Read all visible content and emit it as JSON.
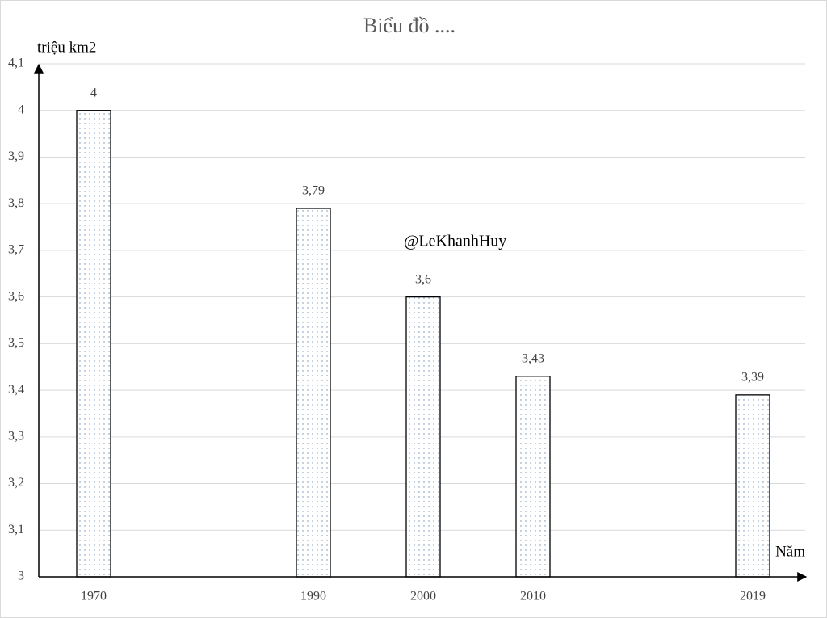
{
  "chart_data": {
    "type": "bar",
    "title": "Biểu đồ ....",
    "y_label": "triệu km2",
    "x_label": "Năm",
    "annotation": "@LeKhanhHuy",
    "categories": [
      "1970",
      null,
      "1990",
      "2000",
      "2010",
      null,
      "2019"
    ],
    "values": [
      4,
      null,
      3.79,
      3.6,
      3.43,
      null,
      3.39
    ],
    "value_labels": [
      "4",
      null,
      "3,79",
      "3,6",
      "3,43",
      null,
      "3,39"
    ],
    "color": "#6a8bb0",
    "ylim": [
      3,
      4.1
    ],
    "yticks": [
      3,
      {
        "value": 3.1,
        "label": "3,1"
      },
      {
        "value": 3.2,
        "label": "3,2"
      },
      {
        "value": 3.3,
        "label": "3,3"
      },
      {
        "value": 3.4,
        "label": "3,4"
      },
      {
        "value": 3.5,
        "label": "3,5"
      },
      {
        "value": 3.6,
        "label": "3,6"
      },
      {
        "value": 3.7,
        "label": "3,7"
      },
      {
        "value": 3.8,
        "label": "3,8"
      },
      {
        "value": 3.9,
        "label": "3,9"
      },
      4,
      {
        "value": 4.1,
        "label": "4,1"
      }
    ],
    "grid": true
  }
}
